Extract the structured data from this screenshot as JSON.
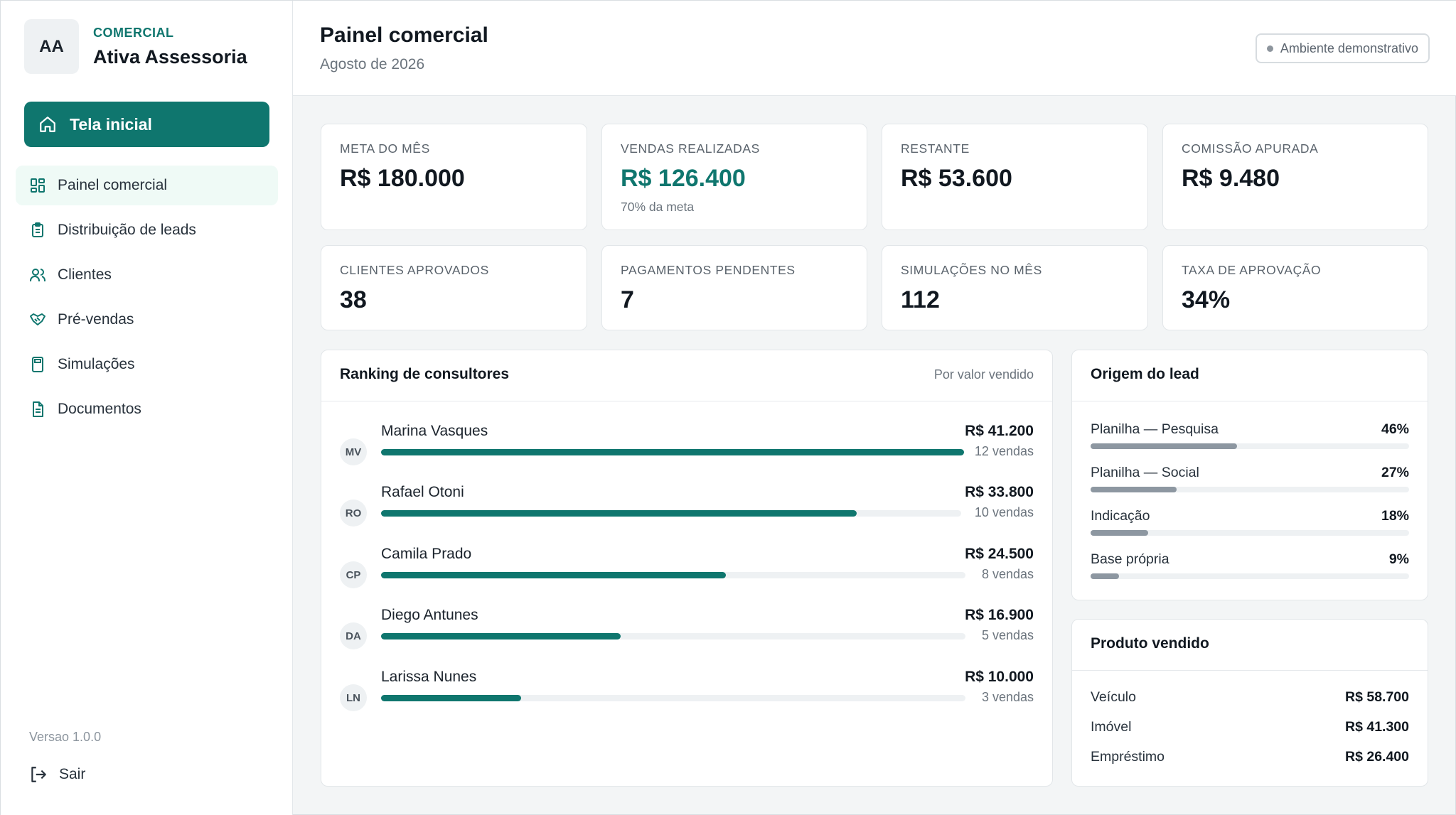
{
  "brand": {
    "initials": "AA",
    "kicker": "COMERCIAL",
    "name": "Ativa Assessoria"
  },
  "sidebar": {
    "home_label": "Tela inicial",
    "items": [
      {
        "label": "Painel comercial",
        "icon": "grid-icon"
      },
      {
        "label": "Distribuição de leads",
        "icon": "clipboard-icon"
      },
      {
        "label": "Clientes",
        "icon": "users-icon"
      },
      {
        "label": "Pré-vendas",
        "icon": "handshake-icon"
      },
      {
        "label": "Simulações",
        "icon": "calculator-icon"
      },
      {
        "label": "Documentos",
        "icon": "document-icon"
      }
    ],
    "version": "Versao 1.0.0",
    "logout_label": "Sair"
  },
  "header": {
    "title": "Painel comercial",
    "subtitle": "Agosto de 2026",
    "env_badge": "Ambiente demonstrativo"
  },
  "kpis": [
    {
      "label": "META DO MÊS",
      "value": "R$ 180.000"
    },
    {
      "label": "VENDAS REALIZADAS",
      "value": "R$ 126.400",
      "sub": "70% da meta"
    },
    {
      "label": "RESTANTE",
      "value": "R$ 53.600"
    },
    {
      "label": "COMISSÃO APURADA",
      "value": "R$ 9.480"
    },
    {
      "label": "CLIENTES APROVADOS",
      "value": "38"
    },
    {
      "label": "PAGAMENTOS PENDENTES",
      "value": "7"
    },
    {
      "label": "SIMULAÇÕES NO MÊS",
      "value": "112"
    },
    {
      "label": "TAXA DE APROVAÇÃO",
      "value": "34%"
    }
  ],
  "ranking": {
    "title": "Ranking de consultores",
    "sort_label": "Por valor vendido",
    "rows": [
      {
        "initials": "MV",
        "name": "Marina Vasques",
        "value": "R$ 41.200",
        "sales": "12 vendas",
        "progress": 1.0
      },
      {
        "initials": "RO",
        "name": "Rafael Otoni",
        "value": "R$ 33.800",
        "sales": "10 vendas",
        "progress": 0.82
      },
      {
        "initials": "CP",
        "name": "Camila Prado",
        "value": "R$ 24.500",
        "sales": "8 vendas",
        "progress": 0.59
      },
      {
        "initials": "DA",
        "name": "Diego Antunes",
        "value": "R$ 16.900",
        "sales": "5 vendas",
        "progress": 0.41
      },
      {
        "initials": "LN",
        "name": "Larissa Nunes",
        "value": "R$ 10.000",
        "sales": "3 vendas",
        "progress": 0.24
      }
    ]
  },
  "origin": {
    "title": "Origem do lead",
    "rows": [
      {
        "name": "Planilha — Pesquisa",
        "pct": "46%",
        "value": 0.46
      },
      {
        "name": "Planilha — Social",
        "pct": "27%",
        "value": 0.27
      },
      {
        "name": "Indicação",
        "pct": "18%",
        "value": 0.18
      },
      {
        "name": "Base própria",
        "pct": "9%",
        "value": 0.09
      }
    ]
  },
  "products": {
    "title": "Produto vendido",
    "rows": [
      {
        "name": "Veículo",
        "value": "R$ 58.700"
      },
      {
        "name": "Imóvel",
        "value": "R$ 41.300"
      },
      {
        "name": "Empréstimo",
        "value": "R$ 26.400"
      }
    ]
  },
  "colors": {
    "accent": "#0f766e",
    "neutral_bar": "#8d97a1",
    "track": "#eef1f3"
  }
}
